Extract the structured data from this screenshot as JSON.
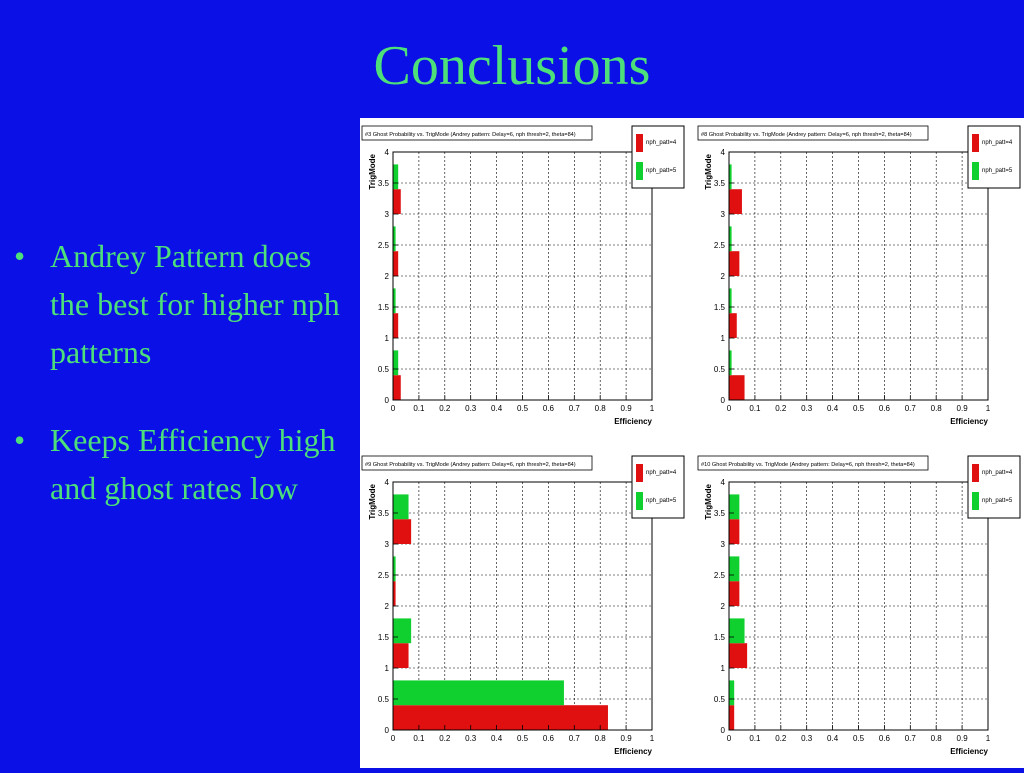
{
  "slide": {
    "title": "Conclusions",
    "bullets": [
      "Andrey Pattern does the best for higher nph patterns",
      "Keeps Efficiency high and ghost rates low"
    ]
  },
  "colors": {
    "background": "#0a10e6",
    "text": "#4de07a",
    "series_red": "#e01010",
    "series_green": "#10d030"
  },
  "chart_data": [
    {
      "type": "bar",
      "orientation": "horizontal",
      "title": "#3 Ghost Probability vs. TrigMode (Andrey pattern: Delay=6, nph thresh=2, theta=84)",
      "xlabel": "Efficiency",
      "ylabel": "TrigMode",
      "xlim": [
        0,
        1
      ],
      "ylim": [
        0,
        4
      ],
      "grid": true,
      "legend": "top-right",
      "categories": [
        0,
        1,
        2,
        3
      ],
      "x_ticks": [
        "0",
        "0.1",
        "0.2",
        "0.3",
        "0.4",
        "0.5",
        "0.6",
        "0.7",
        "0.8",
        "0.9",
        "1"
      ],
      "y_ticks": [
        "0",
        "0.5",
        "1",
        "1.5",
        "2",
        "2.5",
        "3",
        "3.5",
        "4"
      ],
      "series": [
        {
          "name": "nph_patt=4",
          "values": [
            0.03,
            0.02,
            0.02,
            0.03
          ]
        },
        {
          "name": "nph_patt=5",
          "values": [
            0.02,
            0.01,
            0.01,
            0.02
          ]
        }
      ]
    },
    {
      "type": "bar",
      "orientation": "horizontal",
      "title": "#8 Ghost Probability vs. TrigMode (Andrey pattern: Delay=6, nph thresh=2, theta=84)",
      "xlabel": "Efficiency",
      "ylabel": "TrigMode",
      "xlim": [
        0,
        1
      ],
      "ylim": [
        0,
        4
      ],
      "grid": true,
      "legend": "top-right",
      "categories": [
        0,
        1,
        2,
        3
      ],
      "x_ticks": [
        "0",
        "0.1",
        "0.2",
        "0.3",
        "0.4",
        "0.5",
        "0.6",
        "0.7",
        "0.8",
        "0.9",
        "1"
      ],
      "y_ticks": [
        "0",
        "0.5",
        "1",
        "1.5",
        "2",
        "2.5",
        "3",
        "3.5",
        "4"
      ],
      "series": [
        {
          "name": "nph_patt=4",
          "values": [
            0.06,
            0.03,
            0.04,
            0.05
          ]
        },
        {
          "name": "nph_patt=5",
          "values": [
            0.01,
            0.01,
            0.01,
            0.01
          ]
        }
      ]
    },
    {
      "type": "bar",
      "orientation": "horizontal",
      "title": "#9 Ghost Probability vs. TrigMode (Andrey pattern: Delay=6, nph thresh=2, theta=84)",
      "xlabel": "Efficiency",
      "ylabel": "TrigMode",
      "xlim": [
        0,
        1
      ],
      "ylim": [
        0,
        4
      ],
      "grid": true,
      "legend": "top-right",
      "categories": [
        0,
        1,
        2,
        3
      ],
      "x_ticks": [
        "0",
        "0.1",
        "0.2",
        "0.3",
        "0.4",
        "0.5",
        "0.6",
        "0.7",
        "0.8",
        "0.9",
        "1"
      ],
      "y_ticks": [
        "0",
        "0.5",
        "1",
        "1.5",
        "2",
        "2.5",
        "3",
        "3.5",
        "4"
      ],
      "series": [
        {
          "name": "nph_patt=4",
          "values": [
            0.83,
            0.06,
            0.01,
            0.07
          ]
        },
        {
          "name": "nph_patt=5",
          "values": [
            0.66,
            0.07,
            0.01,
            0.06
          ]
        }
      ]
    },
    {
      "type": "bar",
      "orientation": "horizontal",
      "title": "#10 Ghost Probability vs. TrigMode (Andrey pattern: Delay=6, nph thresh=2, theta=84)",
      "xlabel": "Efficiency",
      "ylabel": "TrigMode",
      "xlim": [
        0,
        1
      ],
      "ylim": [
        0,
        4
      ],
      "grid": true,
      "legend": "top-right",
      "categories": [
        0,
        1,
        2,
        3
      ],
      "x_ticks": [
        "0",
        "0.1",
        "0.2",
        "0.3",
        "0.4",
        "0.5",
        "0.6",
        "0.7",
        "0.8",
        "0.9",
        "1"
      ],
      "y_ticks": [
        "0",
        "0.5",
        "1",
        "1.5",
        "2",
        "2.5",
        "3",
        "3.5",
        "4"
      ],
      "series": [
        {
          "name": "nph_patt=4",
          "values": [
            0.02,
            0.07,
            0.04,
            0.04
          ]
        },
        {
          "name": "nph_patt=5",
          "values": [
            0.02,
            0.06,
            0.04,
            0.04
          ]
        }
      ]
    }
  ]
}
